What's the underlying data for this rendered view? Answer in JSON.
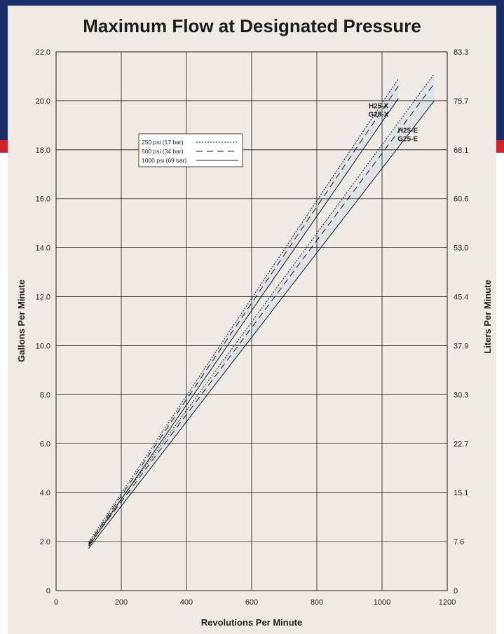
{
  "chart_data": {
    "type": "line",
    "title": "Maximum Flow at Designated Pressure",
    "xlabel": "Revolutions Per Minute",
    "ylabel": "Gallons Per Minute",
    "ylabel_right": "Liters Per Minute",
    "xlim": [
      0,
      1200
    ],
    "ylim": [
      0,
      22
    ],
    "x_ticks": [
      "0",
      "200",
      "400",
      "600",
      "800",
      "1000",
      "1200"
    ],
    "x_tick_values": [
      0,
      200,
      400,
      600,
      800,
      1000,
      1200
    ],
    "y_ticks": [
      "0",
      "2.0",
      "4.0",
      "6.0",
      "8.0",
      "10.0",
      "12.0",
      "14.0",
      "16.0",
      "18.0",
      "20.0",
      "22.0"
    ],
    "y_tick_values": [
      0,
      2,
      4,
      6,
      8,
      10,
      12,
      14,
      16,
      18,
      20,
      22
    ],
    "y_right_ticks": [
      "0",
      "7.6",
      "15.1",
      "22.7",
      "30.3",
      "37.9",
      "45.4",
      "53.0",
      "60.6",
      "68.1",
      "75.7",
      "83.3"
    ],
    "grid": true,
    "legend_position": "upper-left",
    "legend": [
      {
        "label": "250 psi (17 bar)",
        "style": "dotted"
      },
      {
        "label": "500 psi (34 bar)",
        "style": "dashed"
      },
      {
        "label": "1000 psi (69 bar)",
        "style": "solid"
      }
    ],
    "groups": [
      {
        "label_line1": "H25-X",
        "label_line2": "G25-X",
        "label_x": 1020,
        "label_y": 19.7,
        "series": [
          {
            "style": "dotted",
            "x": [
              100,
              1050
            ],
            "y": [
              1.98,
              20.9
            ]
          },
          {
            "style": "dashed",
            "x": [
              100,
              1050
            ],
            "y": [
              1.9,
              20.6
            ]
          },
          {
            "style": "solid",
            "x": [
              100,
              1050
            ],
            "y": [
              1.8,
              20.1
            ]
          }
        ]
      },
      {
        "label_line1": "H25-E",
        "label_line2": "G25-E",
        "label_x": 1110,
        "label_y": 18.7,
        "series": [
          {
            "style": "dotted",
            "x": [
              100,
              1160
            ],
            "y": [
              1.93,
              21.1
            ]
          },
          {
            "style": "dashed",
            "x": [
              100,
              1160
            ],
            "y": [
              1.85,
              20.7
            ]
          },
          {
            "style": "solid",
            "x": [
              100,
              1160
            ],
            "y": [
              1.72,
              20.0
            ]
          }
        ]
      }
    ]
  },
  "colors": {
    "banner": "#1c2f6b",
    "accent_red": "#d2232a",
    "background": "#efebe4",
    "band_fill": "#dde3e7",
    "line": "#1a1a1a"
  }
}
